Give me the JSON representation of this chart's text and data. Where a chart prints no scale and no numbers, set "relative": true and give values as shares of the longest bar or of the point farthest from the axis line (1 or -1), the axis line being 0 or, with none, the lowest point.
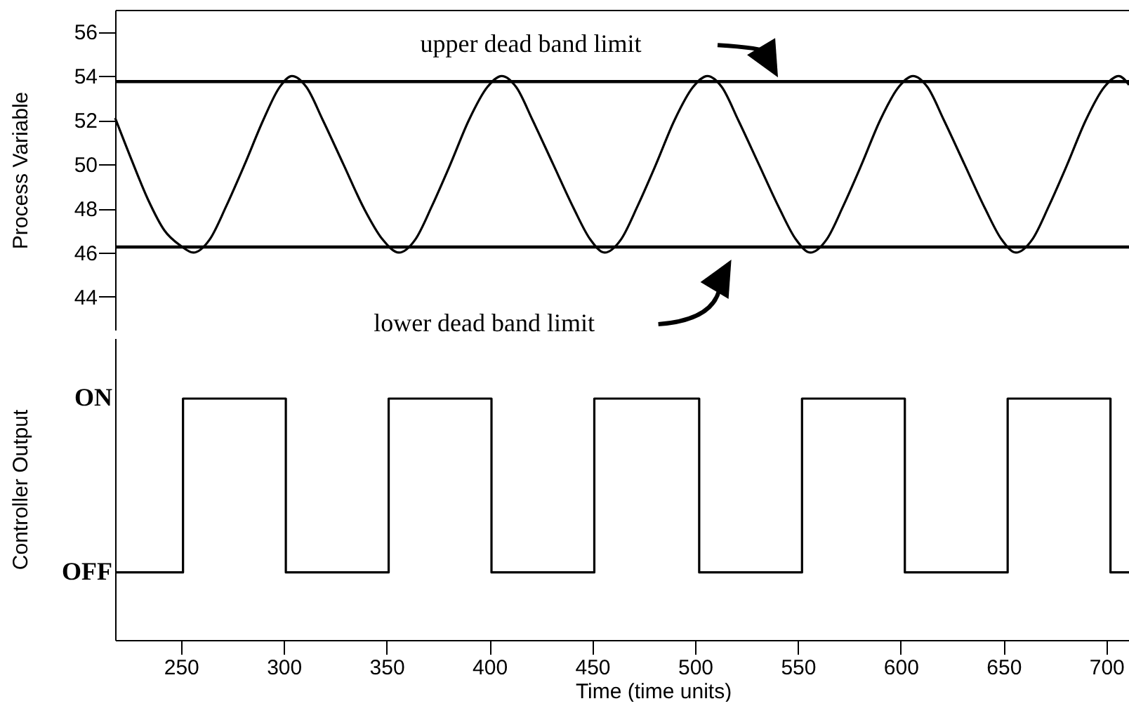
{
  "chart_data": [
    {
      "type": "line",
      "ylabel": "Process Variable",
      "xlim": [
        218,
        711
      ],
      "ylim": [
        42.5,
        57
      ],
      "yticks": [
        44,
        46,
        48,
        50,
        52,
        54,
        56
      ],
      "tick_labels": "y",
      "x": [
        218,
        226,
        234,
        242,
        250,
        256,
        264,
        272,
        281,
        290,
        298,
        304,
        311,
        319,
        329,
        339,
        348,
        356,
        364,
        372,
        381,
        390,
        399,
        406,
        413,
        421,
        431,
        441,
        449,
        456,
        464,
        472,
        481,
        490,
        499,
        506,
        513,
        521,
        531,
        541,
        549,
        556,
        564,
        572,
        581,
        590,
        599,
        606,
        613,
        621,
        631,
        641,
        649,
        656,
        664,
        672,
        681,
        690,
        699,
        706,
        711
      ],
      "series": [
        {
          "color": "#000000",
          "values": [
            52.1,
            50.2,
            48.4,
            47,
            46.3,
            46,
            46.6,
            48.1,
            50,
            52,
            53.5,
            54,
            53.5,
            52,
            50,
            48,
            46.6,
            46,
            46.6,
            48.1,
            50,
            52,
            53.5,
            54,
            53.5,
            52,
            50,
            48,
            46.6,
            46,
            46.6,
            48.1,
            50,
            52,
            53.5,
            54,
            53.5,
            52,
            50,
            48,
            46.6,
            46,
            46.6,
            48.1,
            50,
            52,
            53.5,
            54,
            53.5,
            52,
            50,
            48,
            46.6,
            46,
            46.6,
            48.1,
            50,
            52,
            53.5,
            54,
            53.6
          ]
        }
      ],
      "ref_lines": [
        {
          "axis": "y",
          "value": 53.75,
          "label": "upper dead band limit",
          "color": "#000000"
        },
        {
          "axis": "y",
          "value": 46.25,
          "label": "lower dead band limit",
          "color": "#000000"
        }
      ]
    },
    {
      "type": "step",
      "xlabel": "Time  (time units)",
      "ylabel": "Controller Output",
      "xlim": [
        218,
        711
      ],
      "xticks": [
        250,
        300,
        350,
        400,
        450,
        500,
        550,
        600,
        650,
        700
      ],
      "relative": true,
      "annotations": [
        "ON",
        "OFF"
      ],
      "x": [
        218,
        251,
        301,
        351,
        401,
        451,
        502,
        552,
        602,
        652,
        702,
        711
      ],
      "series": [
        {
          "color": "#000000",
          "values": [
            0.28,
            1,
            0.28,
            1,
            0.28,
            1,
            0.28,
            1,
            0.28,
            1,
            0.28,
            0.28
          ]
        }
      ]
    }
  ]
}
